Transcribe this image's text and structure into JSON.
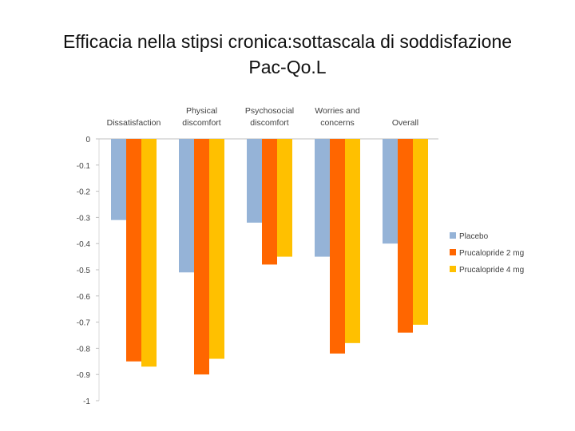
{
  "title": "Efficacia nella stipsi cronica:sottascala di soddisfazione\nPac-Qo.L",
  "chart_data": {
    "type": "bar",
    "orientation": "vertical-negative",
    "categories": [
      "Dissatisfaction",
      "Physical\ndiscomfort",
      "Psychosocial\ndiscomfort",
      "Worries and\nconcerns",
      "Overall"
    ],
    "category_label_position": "top",
    "series": [
      {
        "name": "Placebo",
        "color": "#95B3D7",
        "values": [
          -0.31,
          -0.51,
          -0.32,
          -0.45,
          -0.4
        ]
      },
      {
        "name": "Prucalopride 2 mg",
        "color": "#FF6600",
        "values": [
          -0.85,
          -0.9,
          -0.48,
          -0.82,
          -0.74
        ]
      },
      {
        "name": "Prucalopride 4 mg",
        "color": "#FFC000",
        "values": [
          -0.87,
          -0.84,
          -0.45,
          -0.78,
          -0.71
        ]
      }
    ],
    "y_ticks": [
      "0",
      "-0.1",
      "-0.2",
      "-0.3",
      "-0.4",
      "-0.5",
      "-0.6",
      "-0.7",
      "-0.8",
      "-0.9",
      "-1"
    ],
    "ylim": [
      -1,
      0
    ],
    "legend_position": "right",
    "grid": false
  }
}
